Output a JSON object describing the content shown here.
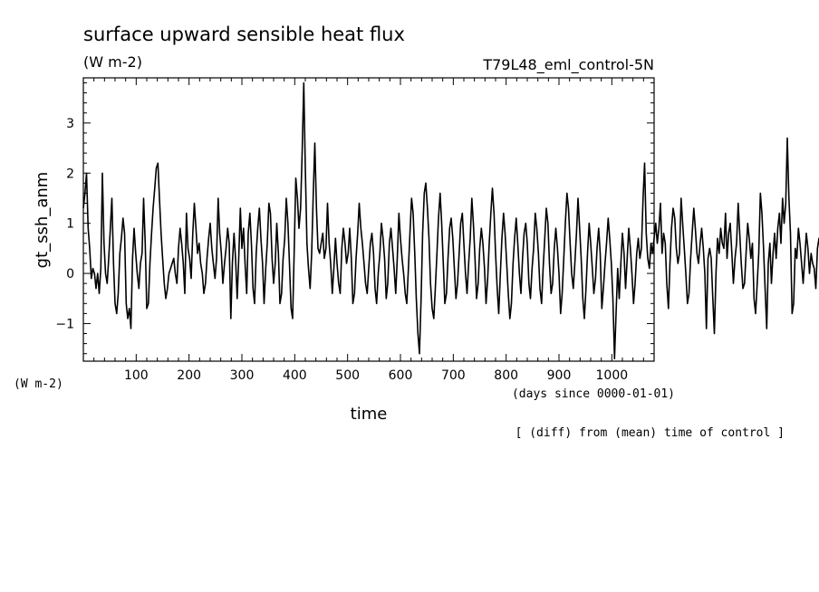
{
  "chart_data": {
    "type": "line",
    "title": "surface upward sensible heat flux",
    "subtitle": "(W m-2)",
    "experiment": "T79L48_eml_control-5N",
    "xlabel": "time",
    "x_units": "(days since 0000-01-01)",
    "ylabel": "gt_ssh_anm",
    "y_units": "(W m-2)",
    "footnote": "[ (diff) from (mean) time of control ]",
    "xlim": [
      0,
      1080
    ],
    "ylim": [
      -1.75,
      3.9
    ],
    "x_ticks": [
      100,
      200,
      300,
      400,
      500,
      600,
      700,
      800,
      900,
      1000
    ],
    "y_ticks": [
      -1,
      0,
      1,
      2,
      3
    ],
    "grid": false,
    "legend": "none",
    "line_color": "#000000",
    "series": [
      {
        "x_start": 0,
        "x_step": 3,
        "values": [
          1.3,
          1.6,
          2.0,
          0.9,
          0.5,
          -0.1,
          0.1,
          0.0,
          -0.3,
          0.0,
          -0.4,
          0.1,
          2.0,
          0.6,
          0.0,
          -0.2,
          0.3,
          0.9,
          1.5,
          0.2,
          -0.6,
          -0.8,
          -0.4,
          0.4,
          0.7,
          1.1,
          0.8,
          -0.6,
          -0.9,
          -0.7,
          -1.1,
          0.3,
          0.9,
          0.4,
          0.0,
          -0.3,
          0.2,
          0.4,
          1.5,
          0.6,
          -0.7,
          -0.6,
          0.2,
          0.8,
          1.3,
          1.7,
          2.1,
          2.2,
          1.5,
          0.8,
          0.3,
          -0.2,
          -0.5,
          -0.3,
          0.0,
          0.1,
          0.2,
          0.3,
          0.0,
          -0.2,
          0.5,
          0.9,
          0.6,
          0.2,
          -0.4,
          1.2,
          0.5,
          0.3,
          -0.1,
          0.8,
          1.4,
          0.9,
          0.4,
          0.6,
          0.2,
          0.0,
          -0.4,
          -0.2,
          0.3,
          0.7,
          1.0,
          0.5,
          0.2,
          -0.1,
          0.3,
          1.5,
          0.8,
          0.4,
          -0.2,
          0.2,
          0.5,
          0.9,
          0.6,
          -0.9,
          0.2,
          0.8,
          0.3,
          -0.5,
          0.3,
          1.3,
          0.5,
          0.9,
          0.2,
          -0.4,
          0.8,
          1.2,
          0.6,
          -0.3,
          -0.6,
          0.4,
          0.9,
          1.3,
          0.7,
          0.2,
          -0.6,
          0.1,
          0.6,
          1.4,
          1.2,
          0.3,
          -0.2,
          0.2,
          1.0,
          0.4,
          -0.6,
          -0.4,
          0.3,
          0.7,
          1.5,
          1.0,
          0.2,
          -0.7,
          -0.9,
          0.5,
          1.9,
          1.5,
          0.9,
          1.3,
          2.4,
          3.8,
          2.1,
          0.6,
          0.1,
          -0.3,
          0.4,
          1.6,
          2.6,
          1.3,
          0.5,
          0.4,
          0.6,
          0.8,
          0.3,
          0.5,
          1.4,
          0.6,
          0.2,
          -0.4,
          0.1,
          0.7,
          0.2,
          -0.2,
          -0.4,
          0.5,
          0.9,
          0.6,
          0.2,
          0.4,
          0.9,
          0.3,
          -0.6,
          -0.4,
          0.3,
          0.8,
          1.4,
          0.9,
          0.6,
          0.2,
          -0.2,
          -0.4,
          0.1,
          0.6,
          0.8,
          0.4,
          -0.3,
          -0.6,
          0.0,
          0.4,
          1.0,
          0.7,
          0.3,
          -0.5,
          -0.2,
          0.6,
          0.9,
          0.5,
          0.1,
          -0.4,
          0.3,
          1.2,
          0.7,
          0.3,
          0.0,
          -0.4,
          -0.6,
          0.1,
          0.8,
          1.5,
          1.2,
          0.4,
          -0.5,
          -1.2,
          -1.6,
          -0.5,
          0.8,
          1.6,
          1.8,
          1.3,
          0.7,
          -0.2,
          -0.7,
          -0.9,
          -0.3,
          0.4,
          1.1,
          1.6,
          1.0,
          0.2,
          -0.6,
          -0.4,
          0.3,
          0.9,
          1.1,
          0.7,
          0.1,
          -0.5,
          -0.2,
          0.4,
          1.0,
          1.2,
          0.6,
          0.0,
          -0.4,
          0.2,
          0.7,
          1.5,
          1.0,
          0.3,
          -0.5,
          -0.2,
          0.5,
          0.9,
          0.6,
          0.1,
          -0.6,
          -0.1,
          0.6,
          1.2,
          1.7,
          1.2,
          0.4,
          -0.3,
          -0.8,
          0.0,
          0.7,
          1.2,
          0.8,
          0.2,
          -0.4,
          -0.9,
          -0.6,
          0.2,
          0.7,
          1.1,
          0.6,
          0.0,
          -0.4,
          0.3,
          0.8,
          1.0,
          0.6,
          -0.2,
          -0.5,
          0.1,
          0.5,
          1.2,
          0.9,
          0.4,
          -0.3,
          -0.6,
          0.1,
          0.7,
          1.3,
          1.0,
          0.2,
          -0.4,
          -0.2,
          0.5,
          0.9,
          0.5,
          0.0,
          -0.8,
          -0.4,
          0.3,
          1.0,
          1.6,
          1.3,
          0.6,
          0.0,
          -0.3,
          0.2,
          0.8,
          1.5,
          0.9,
          0.3,
          -0.5,
          -0.9,
          -0.3,
          0.4,
          1.0,
          0.6,
          0.1,
          -0.4,
          -0.1,
          0.5,
          0.9,
          0.4,
          -0.7,
          -0.3,
          0.2,
          0.6,
          1.1,
          0.7,
          0.2,
          -0.5,
          -1.7,
          -0.8,
          0.1,
          -0.5,
          0.2,
          0.8,
          0.4,
          -0.3,
          0.3,
          0.9,
          0.5,
          0.0,
          -0.6,
          -0.2,
          0.4,
          0.7,
          0.3,
          0.5,
          1.5,
          2.2,
          0.8,
          0.3,
          0.1,
          0.6,
          0.4,
          0.7,
          1.0,
          0.6,
          0.9,
          1.4,
          0.4,
          0.8,
          0.6,
          -0.2,
          -0.7,
          0.2,
          0.9,
          1.3,
          1.1,
          0.5,
          0.2,
          0.4,
          1.5,
          1.0,
          0.5,
          0.0,
          -0.6,
          -0.4,
          0.3,
          0.8,
          1.3,
          0.9,
          0.4,
          0.2,
          0.6,
          0.9,
          0.5,
          0.0,
          -1.1,
          0.3,
          0.5,
          0.3,
          -0.5,
          -1.2,
          0.0,
          0.7,
          0.4,
          0.9,
          0.6,
          0.5,
          1.2,
          0.3,
          0.8,
          1.0,
          0.4,
          -0.2,
          0.3,
          0.6,
          1.4,
          0.8,
          0.2,
          -0.3,
          -0.2,
          0.4,
          1.0,
          0.7,
          0.3,
          0.6,
          -0.5,
          -0.8,
          -0.2,
          0.4,
          1.6,
          1.2,
          0.5,
          -0.3,
          -1.1,
          0.2,
          0.6,
          -0.2,
          0.4,
          0.8,
          0.3,
          0.9,
          1.2,
          0.6,
          1.5,
          1.0,
          1.4,
          2.7,
          1.5,
          0.8,
          -0.8,
          -0.6,
          0.5,
          0.3,
          0.9,
          0.6,
          0.2,
          -0.2,
          0.3,
          0.8,
          0.5,
          0.0,
          0.4,
          0.2,
          0.1,
          -0.3,
          0.5,
          0.7,
          0.4,
          0.9,
          1.0,
          0.2,
          -0.5
        ]
      }
    ]
  }
}
